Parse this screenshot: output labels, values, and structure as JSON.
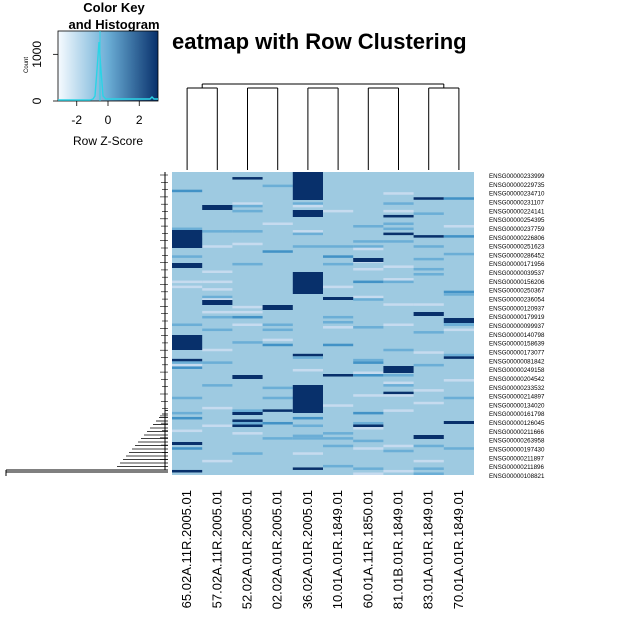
{
  "chart_data": {
    "type": "heatmap",
    "title": "eatmap with Row Clustering",
    "color_key": {
      "title_line1": "Color Key",
      "title_line2": "and Histogram",
      "xlabel": "Row Z-Score",
      "ylabel": "Count",
      "xticks": [
        "-2",
        "0",
        "2"
      ],
      "yticks": [
        "0",
        "1000"
      ],
      "xlim": [
        -3.2,
        3.2
      ],
      "ylim": [
        0,
        1500
      ],
      "colors": {
        "low": "#f7fbff",
        "mid": "#6baed6",
        "high": "#08306b"
      }
    },
    "columns": [
      "65.02A.11R.2005.01",
      "57.02A.11R.2005.01",
      "52.02A.01R.2005.01",
      "02.02A.01R.2005.01",
      "36.02A.01R.2005.01",
      "10.01A.01R.1849.01",
      "60.01A.11R.1850.01",
      "81.01B.01R.1849.01",
      "83.01A.01R.1849.01",
      "70.01A.01R.1849.01"
    ],
    "row_labels": [
      "ENSG00000233999",
      "ENSG00000229735",
      "ENSG00000234710",
      "ENSG00000231107",
      "ENSG00000224141",
      "ENSG00000254395",
      "ENSG00000237759",
      "ENSG00000226806",
      "ENSG00000251623",
      "ENSG00000286452",
      "ENSG00000171956",
      "ENSG00000039537",
      "ENSG00000156206",
      "ENSG00000250367",
      "ENSG00000236054",
      "ENSG00000120937",
      "ENSG00000179919",
      "ENSG00000099937",
      "ENSG00000140798",
      "ENSG00000158639",
      "ENSG00000173077",
      "ENSG00000081842",
      "ENSG00000249158",
      "ENSG00000204542",
      "ENSG00000233532",
      "ENSG00000214897",
      "ENSG00000134020",
      "ENSG00000161798",
      "ENSG00000126045",
      "ENSG00000211666",
      "ENSG00000263958",
      "ENSG00000197430",
      "ENSG00000211897",
      "ENSG00000211896",
      "ENSG00000108821"
    ]
  }
}
